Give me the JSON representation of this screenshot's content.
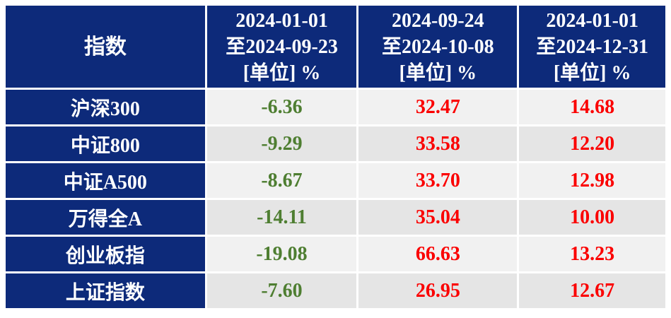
{
  "colors": {
    "header_bg": "#0d2a7a",
    "header_text": "#ffffff",
    "positive": "#fb0000",
    "negative": "#4e7e31",
    "row_bg_light": "#f1f1f1",
    "row_bg_dark": "#e5e5e5",
    "page_bg": "#ffffff"
  },
  "table": {
    "index_column_header": "指数",
    "period_columns": [
      {
        "line1": "2024-01-01",
        "line2": "至2024-09-23",
        "line3": "[单位] %"
      },
      {
        "line1": "2024-09-24",
        "line2": "至2024-10-08",
        "line3": "[单位] %"
      },
      {
        "line1": "2024-01-01",
        "line2": "至2024-12-31",
        "line3": "[单位] %"
      }
    ],
    "rows": [
      {
        "label": "沪深300",
        "values": [
          "-6.36",
          "32.47",
          "14.68"
        ]
      },
      {
        "label": "中证800",
        "values": [
          "-9.29",
          "33.58",
          "12.20"
        ]
      },
      {
        "label": "中证A500",
        "values": [
          "-8.67",
          "33.70",
          "12.98"
        ]
      },
      {
        "label": "万得全A",
        "values": [
          "-14.11",
          "35.04",
          "10.00"
        ]
      },
      {
        "label": "创业板指",
        "values": [
          "-19.08",
          "66.63",
          "13.23"
        ]
      },
      {
        "label": "上证指数",
        "values": [
          "-7.60",
          "26.95",
          "12.67"
        ]
      }
    ]
  },
  "chart_data": {
    "type": "table",
    "title": "",
    "columns": [
      "指数",
      "2024-01-01至2024-09-23 [单位] %",
      "2024-09-24至2024-10-08 [单位] %",
      "2024-01-01至2024-12-31 [单位] %"
    ],
    "categories": [
      "沪深300",
      "中证800",
      "中证A500",
      "万得全A",
      "创业板指",
      "上证指数"
    ],
    "series": [
      {
        "name": "2024-01-01至2024-09-23",
        "values": [
          -6.36,
          -9.29,
          -8.67,
          -14.11,
          -19.08,
          -7.6
        ]
      },
      {
        "name": "2024-09-24至2024-10-08",
        "values": [
          32.47,
          33.58,
          33.7,
          35.04,
          66.63,
          26.95
        ]
      },
      {
        "name": "2024-01-01至2024-12-31",
        "values": [
          14.68,
          12.2,
          12.98,
          10.0,
          13.23,
          12.67
        ]
      }
    ],
    "value_color_rule": "negative=green, positive=red"
  }
}
